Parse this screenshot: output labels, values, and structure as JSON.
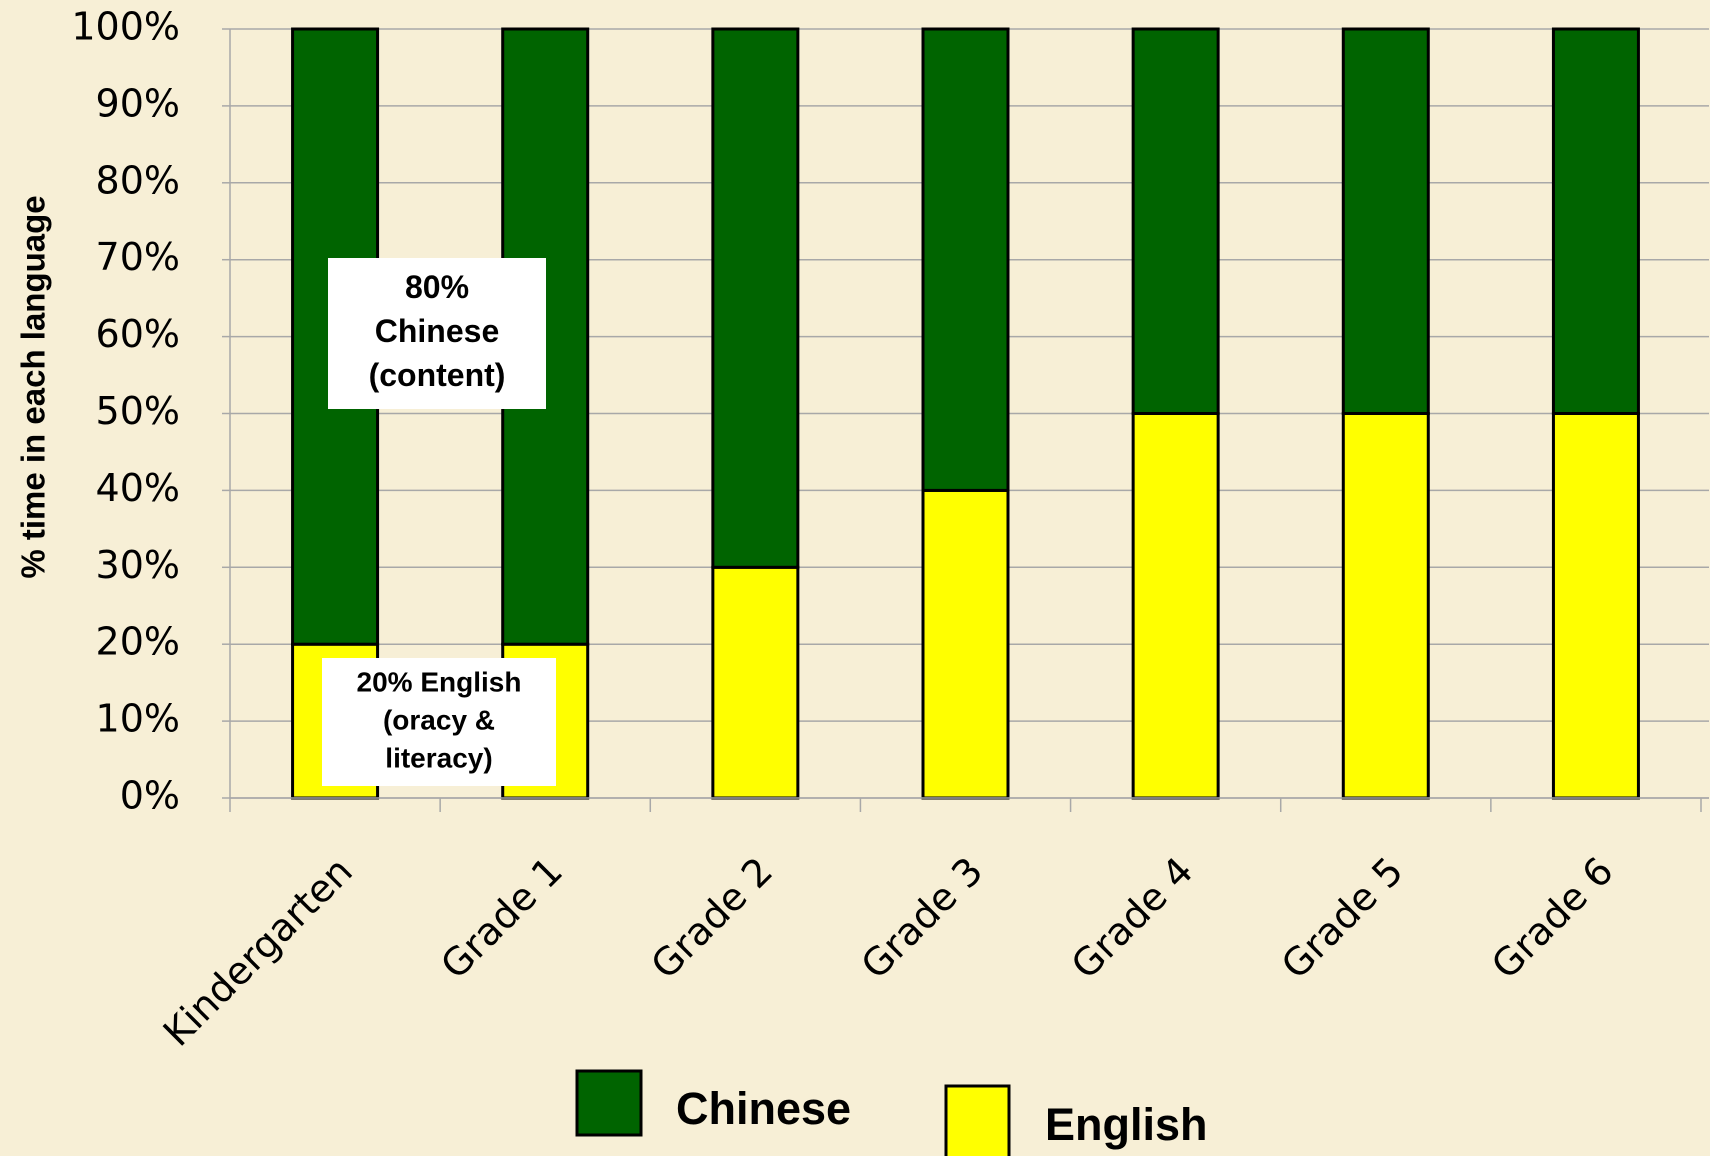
{
  "chart_data": {
    "type": "stacked_bar",
    "y_label": "% time in each language",
    "categories": [
      "Kindergarten",
      "Grade 1",
      "Grade 2",
      "Grade 3",
      "Grade 4",
      "Grade 5",
      "Grade 6"
    ],
    "series": [
      {
        "name": "Chinese",
        "color": "#006400",
        "values": [
          80,
          80,
          70,
          60,
          50,
          50,
          50
        ]
      },
      {
        "name": "English",
        "color": "#ffff00",
        "values": [
          20,
          20,
          30,
          40,
          50,
          50,
          50
        ]
      }
    ],
    "ylim": [
      0,
      100
    ],
    "yticks": [
      {
        "value": 0,
        "label": "0%"
      },
      {
        "value": 10,
        "label": "10%"
      },
      {
        "value": 20,
        "label": "20%"
      },
      {
        "value": 30,
        "label": "30%"
      },
      {
        "value": 40,
        "label": "40%"
      },
      {
        "value": 50,
        "label": "50%"
      },
      {
        "value": 60,
        "label": "60%"
      },
      {
        "value": 70,
        "label": "70%"
      },
      {
        "value": 80,
        "label": "80%"
      },
      {
        "value": 90,
        "label": "90%"
      },
      {
        "value": 100,
        "label": "100%"
      }
    ],
    "grid": true,
    "annotations": [
      {
        "lines": [
          "80%",
          "Chinese",
          "(content)"
        ]
      },
      {
        "lines": [
          "20% English",
          "(oracy &",
          "literacy)"
        ]
      }
    ]
  }
}
